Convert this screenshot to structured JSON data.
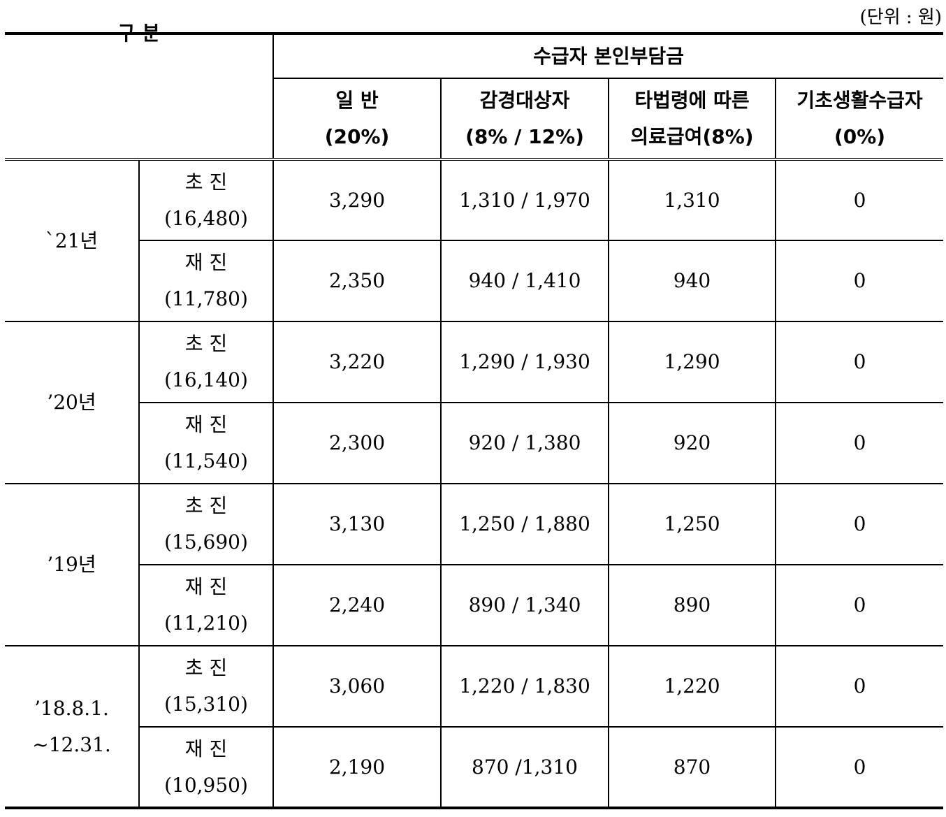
{
  "unit_note": "(단위 : 원)",
  "header": {
    "gubun": "구 분",
    "group_title": "수급자 본인부담금",
    "columns": [
      {
        "line1": "일 반",
        "line2": "(20%)"
      },
      {
        "line1": "감경대상자",
        "line2": "(8% / 12%)"
      },
      {
        "line1": "타법령에 따른",
        "line2": "의료급여(8%)"
      },
      {
        "line1": "기초생활수급자",
        "line2": "(0%)"
      }
    ]
  },
  "years": [
    {
      "label_lines": [
        "`21년"
      ],
      "rows": [
        {
          "type": "초 진",
          "total": "(16,480)",
          "values": [
            "3,290",
            "1,310 / 1,970",
            "1,310",
            "0"
          ]
        },
        {
          "type": "재 진",
          "total": "(11,780)",
          "values": [
            "2,350",
            "940 / 1,410",
            "940",
            "0"
          ]
        }
      ]
    },
    {
      "label_lines": [
        "’20년"
      ],
      "rows": [
        {
          "type": "초 진",
          "total": "(16,140)",
          "values": [
            "3,220",
            "1,290 / 1,930",
            "1,290",
            "0"
          ]
        },
        {
          "type": "재 진",
          "total": "(11,540)",
          "values": [
            "2,300",
            "920 / 1,380",
            "920",
            "0"
          ]
        }
      ]
    },
    {
      "label_lines": [
        "’19년"
      ],
      "rows": [
        {
          "type": "초 진",
          "total": "(15,690)",
          "values": [
            "3,130",
            "1,250 / 1,880",
            "1,250",
            "0"
          ]
        },
        {
          "type": "재 진",
          "total": "(11,210)",
          "values": [
            "2,240",
            "890 / 1,340",
            "890",
            "0"
          ]
        }
      ]
    },
    {
      "label_lines": [
        "’18.8.1.",
        "~12.31."
      ],
      "rows": [
        {
          "type": "초 진",
          "total": "(15,310)",
          "values": [
            "3,060",
            "1,220 / 1,830",
            "1,220",
            "0"
          ]
        },
        {
          "type": "재 진",
          "total": "(10,950)",
          "values": [
            "2,190",
            "870 /1,310",
            "870",
            "0"
          ]
        }
      ]
    }
  ]
}
